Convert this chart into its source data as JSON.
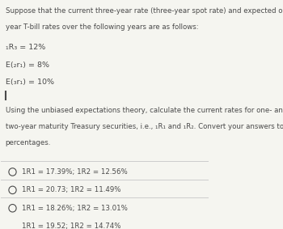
{
  "bg_color": "#f5f5f0",
  "text_color": "#4a4a4a",
  "title_lines": [
    "Suppose that the current three-year rate (three-year spot rate) and expected one-",
    "year T-bill rates over the following years are as follows:"
  ],
  "given_lines": [
    "₁R₃ = 12%",
    "E(₂r₁) = 8%",
    "E(₃r₁) = 10%"
  ],
  "question_lines": [
    "Using the unbiased expectations theory, calculate the current rates for one- and",
    "two-year maturity Treasury securities, i.e., ₁R₁ and ₁R₂. Convert your answers to",
    "percentages."
  ],
  "choices": [
    "1R1 = 17.39%; 1R2 = 12.56%",
    "1R1 = 20.73; 1R2 = 11.49%",
    "1R1 = 18.26%; 1R2 = 13.01%",
    "1R1 = 19.52; 1R2 = 14.74%"
  ],
  "divider_color": "#cccccc",
  "font_size_title": 6.2,
  "font_size_given": 6.8,
  "font_size_question": 6.2,
  "font_size_choices": 6.2
}
